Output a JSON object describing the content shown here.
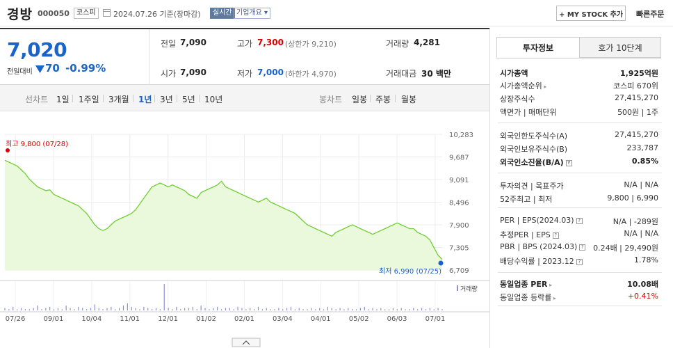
{
  "header": {
    "name": "경방",
    "code": "000050",
    "market": "코스피",
    "date": "2024.07.26 기준(장마감)",
    "live": "실시간",
    "overview": "기업개요",
    "mystock_btn": "+ MY STOCK 추가",
    "quick_order": "빠른주문"
  },
  "summary": {
    "price": "7,020",
    "change_label": "전일대비",
    "change_value": "70",
    "change_pct": "-0.99%",
    "prev_label": "전일",
    "prev": "7,090",
    "open_label": "시가",
    "open": "7,090",
    "high_label": "고가",
    "high": "7,300",
    "upper_limit": "(상한가 9,210)",
    "low_label": "저가",
    "low": "7,000",
    "lower_limit": "(하한가 4,970)",
    "volume_label": "거래량",
    "volume": "4,281",
    "amount_label": "거래대금",
    "amount": "30 백만"
  },
  "periods": {
    "line_label": "선차트",
    "line": [
      "1일",
      "1주일",
      "3개월",
      "1년",
      "3년",
      "5년",
      "10년"
    ],
    "active": "1년",
    "candle_label": "봉차트",
    "candle": [
      "일봉",
      "주봉",
      "월봉"
    ]
  },
  "chart_data": {
    "type": "area",
    "yticks": [
      "10,283",
      "9,687",
      "9,091",
      "8,496",
      "7,900",
      "7,305",
      "6,709"
    ],
    "ylim": [
      6709,
      10283
    ],
    "xticks": [
      "07/26",
      "09/01",
      "10/04",
      "11/01",
      "12/01",
      "01/02",
      "02/01",
      "03/04",
      "04/01",
      "05/02",
      "06/03",
      "07/01"
    ],
    "values": [
      9600,
      9550,
      9500,
      9450,
      9350,
      9250,
      9100,
      9000,
      8900,
      8850,
      8800,
      8820,
      8700,
      8650,
      8600,
      8550,
      8500,
      8450,
      8400,
      8300,
      8200,
      8050,
      7900,
      7800,
      7750,
      7800,
      7900,
      8000,
      8050,
      8100,
      8150,
      8200,
      8300,
      8450,
      8600,
      8750,
      8900,
      8950,
      9000,
      8950,
      8900,
      8950,
      8900,
      8850,
      8800,
      8700,
      8650,
      8600,
      8750,
      8800,
      8850,
      8900,
      8950,
      9050,
      8900,
      8850,
      8800,
      8750,
      8700,
      8650,
      8600,
      8550,
      8500,
      8550,
      8600,
      8500,
      8450,
      8400,
      8350,
      8300,
      8250,
      8200,
      8100,
      8000,
      7900,
      7850,
      7800,
      7750,
      7700,
      7650,
      7600,
      7700,
      7750,
      7800,
      7850,
      7900,
      7850,
      7800,
      7750,
      7700,
      7650,
      7700,
      7750,
      7800,
      7850,
      7900,
      7950,
      7900,
      7850,
      7800,
      7800,
      7700,
      7650,
      7600,
      7500,
      7300,
      7100,
      6990
    ],
    "high_label": "최고 9,800 (07/28)",
    "low_label": "최저 6,990 (07/25)",
    "volume_label": "거래량",
    "volume": [
      2,
      1,
      3,
      1,
      2,
      1,
      1,
      2,
      4,
      1,
      2,
      3,
      1,
      2,
      1,
      4,
      2,
      1,
      3,
      2,
      1,
      2,
      5,
      2,
      1,
      2,
      3,
      1,
      2,
      4,
      6,
      3,
      2,
      1,
      3,
      2,
      1,
      2,
      1,
      22,
      2,
      1,
      3,
      1,
      2,
      2,
      3,
      1,
      4,
      2,
      1,
      2,
      3,
      1,
      2,
      2,
      1,
      3,
      2,
      1,
      2,
      1,
      3,
      1,
      2,
      1,
      1,
      2,
      1,
      2,
      3,
      1,
      2,
      1,
      1,
      2,
      1,
      2,
      1,
      3,
      2,
      1,
      2,
      1,
      2,
      1,
      1,
      2,
      3,
      1,
      2,
      1,
      2,
      1,
      1,
      2,
      1,
      2,
      1,
      1,
      2,
      1,
      2,
      1,
      2,
      1,
      2,
      1
    ],
    "line_color": "#6fcf2f",
    "fill_color": "#eaf8dc"
  },
  "panel": {
    "tab_active": "투자정보",
    "tab_other": "호가 10단계",
    "rows": [
      {
        "label": "시가총액",
        "value": "1,925억원",
        "bold": true
      },
      {
        "label": "시가총액순위",
        "value": "코스피 670위",
        "arrow": true
      },
      {
        "label": "상장주식수",
        "value": "27,415,270"
      },
      {
        "label": "액면가 | 매매단위",
        "value": "500원 | 1주"
      },
      {
        "label": "외국인한도주식수(A)",
        "value": "27,415,270"
      },
      {
        "label": "외국인보유주식수(B)",
        "value": "233,787"
      },
      {
        "label": "외국인소진율(B/A)",
        "value": "0.85%",
        "bold": true,
        "q": true
      },
      {
        "label": "투자의견 | 목표주가",
        "value": "N/A | N/A"
      },
      {
        "label": "52주최고 | 최저",
        "value": "9,800 | 6,990"
      },
      {
        "label": "PER | EPS(2024.03)",
        "value": "N/A | -289원",
        "q": true
      },
      {
        "label": "추정PER | EPS",
        "value": "N/A | N/A",
        "q": true
      },
      {
        "label": "PBR | BPS (2024.03)",
        "value": "0.24배 | 29,490원",
        "q": true
      },
      {
        "label": "배당수익률 | 2023.12",
        "value": "1.78%",
        "q": true
      },
      {
        "label": "동일업종 PER",
        "value": "10.08배",
        "bold": true,
        "arrow": true
      },
      {
        "label": "동일업종 등락률",
        "value": "+0.41%",
        "red": true,
        "arrow": true
      }
    ]
  }
}
